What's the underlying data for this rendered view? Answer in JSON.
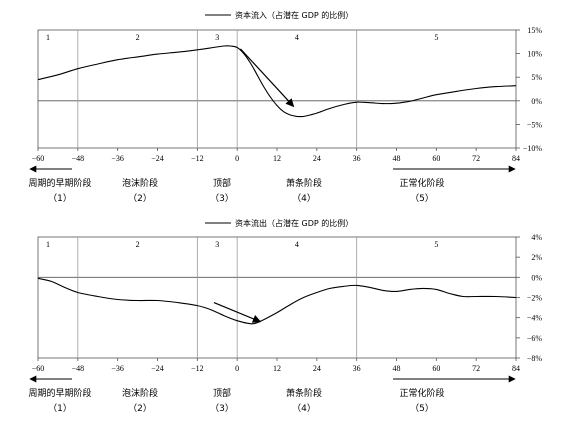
{
  "chart_data": [
    {
      "type": "line",
      "legend": "资本流入（占潜在 GDP 的比例）",
      "xlim": [
        -60,
        84
      ],
      "ylim": [
        -10,
        15
      ],
      "x_ticks": [
        "−60",
        "−48",
        "−36",
        "−24",
        "−12",
        "0",
        "12",
        "24",
        "36",
        "48",
        "60",
        "72",
        "84"
      ],
      "y_ticks": [
        "15%",
        "10%",
        "5%",
        "0%",
        "−5%",
        "−10%"
      ],
      "y_tick_values": [
        15,
        10,
        5,
        0,
        -5,
        -10
      ],
      "phase_boundaries": [
        -48,
        -12,
        0,
        36
      ],
      "phases": [
        {
          "num": "1",
          "center": -57
        },
        {
          "num": "2",
          "center": -30
        },
        {
          "num": "3",
          "center": -6
        },
        {
          "num": "4",
          "center": 18
        },
        {
          "num": "5",
          "center": 60
        }
      ],
      "series": [
        {
          "x": [
            -60,
            -54,
            -48,
            -42,
            -36,
            -30,
            -24,
            -18,
            -12,
            -8,
            -4,
            -2,
            0,
            2,
            4,
            6,
            8,
            10,
            12,
            14,
            16,
            18,
            20,
            22,
            24,
            28,
            32,
            36,
            40,
            44,
            48,
            52,
            56,
            60,
            66,
            72,
            78,
            84
          ],
          "y": [
            4.5,
            5.5,
            6.8,
            7.8,
            8.7,
            9.3,
            9.9,
            10.3,
            10.8,
            11.2,
            11.6,
            11.6,
            11.3,
            10.0,
            8.0,
            5.5,
            3.0,
            0.8,
            -1.0,
            -2.3,
            -3.0,
            -3.3,
            -3.3,
            -3.0,
            -2.6,
            -1.6,
            -0.8,
            -0.3,
            -0.4,
            -0.6,
            -0.5,
            -0.1,
            0.6,
            1.3,
            2.0,
            2.6,
            3.0,
            3.2
          ]
        }
      ],
      "annotation_arrow": {
        "from": [
          1,
          11
        ],
        "to": [
          17,
          -1.2
        ]
      }
    },
    {
      "type": "line",
      "legend": "资本流出（占潜在 GDP 的比例）",
      "xlim": [
        -60,
        84
      ],
      "ylim": [
        -8,
        4
      ],
      "x_ticks": [
        "−60",
        "−48",
        "−36",
        "−24",
        "−12",
        "0",
        "12",
        "24",
        "36",
        "48",
        "60",
        "72",
        "84"
      ],
      "y_ticks": [
        "4%",
        "2%",
        "0%",
        "−2%",
        "−4%",
        "−6%",
        "−8%"
      ],
      "y_tick_values": [
        4,
        2,
        0,
        -2,
        -4,
        -6,
        -8
      ],
      "phase_boundaries": [
        -48,
        -12,
        0,
        36
      ],
      "phases": [
        {
          "num": "1",
          "center": -57
        },
        {
          "num": "2",
          "center": -30
        },
        {
          "num": "3",
          "center": -6
        },
        {
          "num": "4",
          "center": 18
        },
        {
          "num": "5",
          "center": 60
        }
      ],
      "series": [
        {
          "x": [
            -60,
            -56,
            -52,
            -48,
            -42,
            -36,
            -30,
            -24,
            -18,
            -12,
            -8,
            -4,
            0,
            4,
            6,
            8,
            12,
            16,
            20,
            24,
            28,
            32,
            36,
            40,
            44,
            48,
            52,
            56,
            60,
            64,
            68,
            72,
            78,
            84
          ],
          "y": [
            -0.1,
            -0.4,
            -1.0,
            -1.5,
            -1.9,
            -2.2,
            -2.3,
            -2.3,
            -2.5,
            -2.8,
            -3.2,
            -3.8,
            -4.3,
            -4.6,
            -4.5,
            -4.2,
            -3.5,
            -2.7,
            -2.0,
            -1.5,
            -1.1,
            -0.9,
            -0.8,
            -1.0,
            -1.3,
            -1.4,
            -1.2,
            -1.1,
            -1.2,
            -1.6,
            -1.9,
            -1.9,
            -1.9,
            -2.0
          ]
        }
      ],
      "annotation_arrow": {
        "from": [
          -7,
          -2.5
        ],
        "to": [
          7,
          -4.4
        ]
      }
    }
  ],
  "stages": [
    {
      "label": "周期的早期阶段",
      "num": "（1）"
    },
    {
      "label": "泡沫阶段",
      "num": "（2）"
    },
    {
      "label": "顶部",
      "num": "（3）"
    },
    {
      "label": "萧条阶段",
      "num": "（4）"
    },
    {
      "label": "正常化阶段",
      "num": "（5）"
    }
  ],
  "colors": {
    "line": "#000000",
    "grid": "#999999",
    "frame": "#555555"
  }
}
